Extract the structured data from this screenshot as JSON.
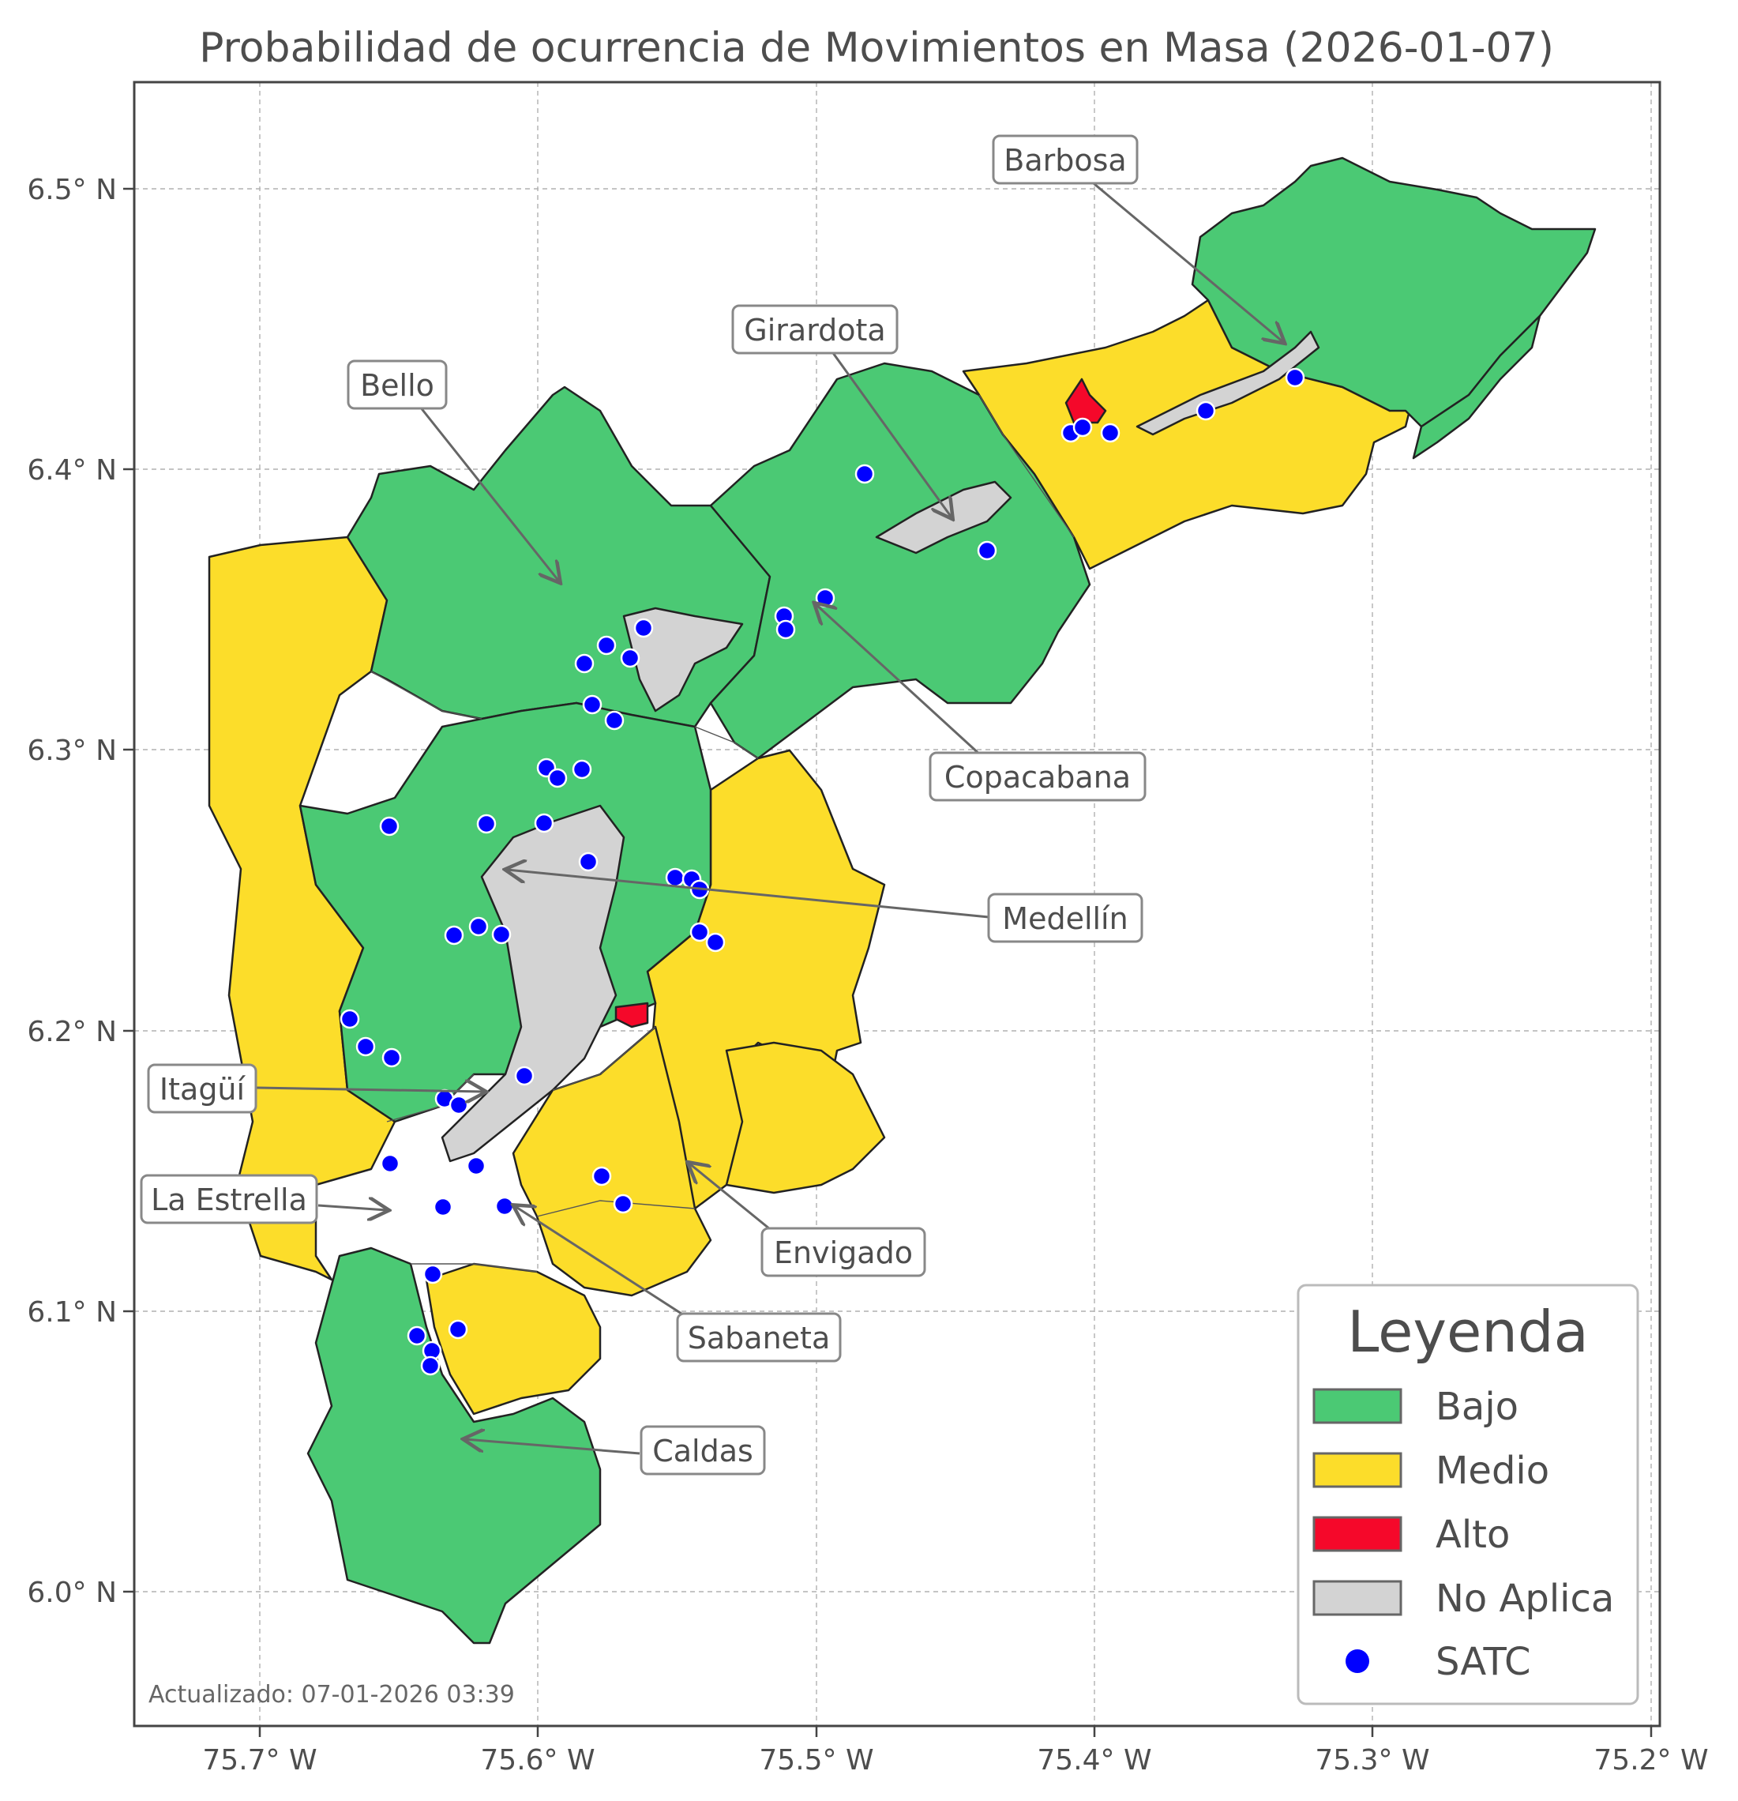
{
  "title": "Probabilidad de ocurrencia de Movimientos en Masa (2026-01-07)",
  "footer": "Actualizado: 07-01-2026 03:39",
  "axes": {
    "x_ticks": [
      "75.7° W",
      "75.6° W",
      "75.5° W",
      "75.4° W",
      "75.3° W",
      "75.2° W"
    ],
    "y_ticks": [
      "6.5° N",
      "6.4° N",
      "6.3° N",
      "6.2° N",
      "6.1° N",
      "6.0° N"
    ],
    "grid": true
  },
  "colors": {
    "bajo": "#4bc974",
    "medio": "#fcdd2a",
    "alto": "#f5082a",
    "no_aplica": "#d3d3d3",
    "satc": "#0000ff"
  },
  "municipalities": {
    "barbosa": "Barbosa",
    "girardota": "Girardota",
    "bello": "Bello",
    "copacabana": "Copacabana",
    "medellin": "Medellín",
    "itagui": "Itagüí",
    "la_estrella": "La Estrella",
    "envigado": "Envigado",
    "sabaneta": "Sabaneta",
    "caldas": "Caldas"
  },
  "legend": {
    "title": "Leyenda",
    "items": [
      {
        "label": "Bajo",
        "color": "#4bc974",
        "kind": "patch"
      },
      {
        "label": "Medio",
        "color": "#fcdd2a",
        "kind": "patch"
      },
      {
        "label": "Alto",
        "color": "#f5082a",
        "kind": "patch"
      },
      {
        "label": "No Aplica",
        "color": "#d3d3d3",
        "kind": "patch"
      },
      {
        "label": "SATC",
        "color": "#0000ff",
        "kind": "dot"
      }
    ]
  }
}
